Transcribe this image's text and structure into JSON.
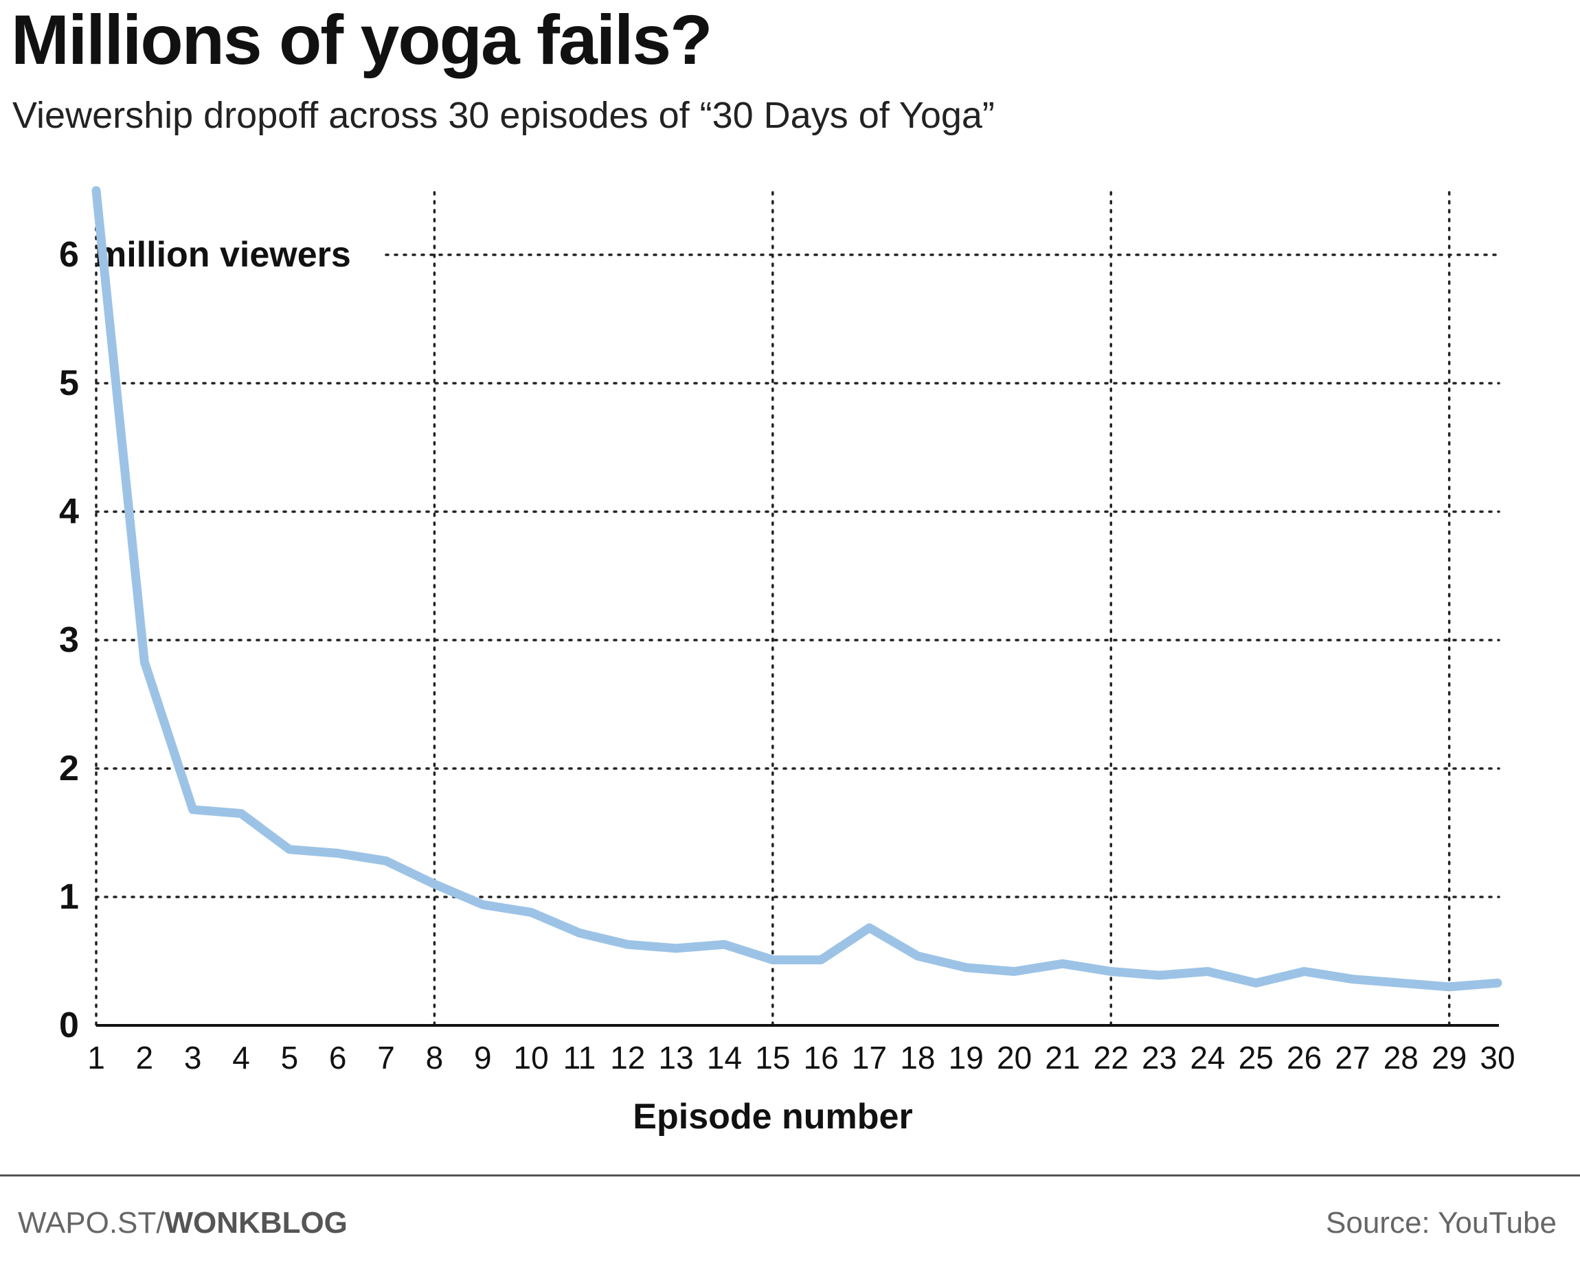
{
  "title": "Millions of yoga fails?",
  "subtitle": "Viewership dropoff across 30 episodes of “30 Days of Yoga”",
  "footer": {
    "credit_prefix": "WAPO.ST/",
    "credit_brand": "WONKBLOG",
    "source": "Source: YouTube"
  },
  "colors": {
    "line": "#9cc3e6",
    "grid": "#222222",
    "axis": "#111111",
    "rule": "#555555"
  },
  "chart_data": {
    "type": "line",
    "xlabel": "Episode number",
    "ylabel": "",
    "y_unit_label": "million viewers",
    "xlim": [
      1,
      30
    ],
    "ylim": [
      0,
      6.5
    ],
    "y_ticks": [
      0,
      1,
      2,
      3,
      4,
      5,
      6
    ],
    "x_ticks": [
      1,
      2,
      3,
      4,
      5,
      6,
      7,
      8,
      9,
      10,
      11,
      12,
      13,
      14,
      15,
      16,
      17,
      18,
      19,
      20,
      21,
      22,
      23,
      24,
      25,
      26,
      27,
      28,
      29,
      30
    ],
    "vertical_grid_at": [
      1,
      8,
      15,
      22,
      29
    ],
    "grid": true,
    "series": [
      {
        "name": "",
        "x": [
          1,
          2,
          3,
          4,
          5,
          6,
          7,
          8,
          9,
          10,
          11,
          12,
          13,
          14,
          15,
          16,
          17,
          18,
          19,
          20,
          21,
          22,
          23,
          24,
          25,
          26,
          27,
          28,
          29,
          30
        ],
        "values": [
          6.5,
          2.83,
          1.68,
          1.65,
          1.37,
          1.34,
          1.28,
          1.1,
          0.94,
          0.88,
          0.72,
          0.63,
          0.6,
          0.63,
          0.51,
          0.51,
          0.76,
          0.54,
          0.45,
          0.42,
          0.48,
          0.42,
          0.39,
          0.42,
          0.33,
          0.42,
          0.36,
          0.33,
          0.3,
          0.33
        ]
      }
    ]
  }
}
